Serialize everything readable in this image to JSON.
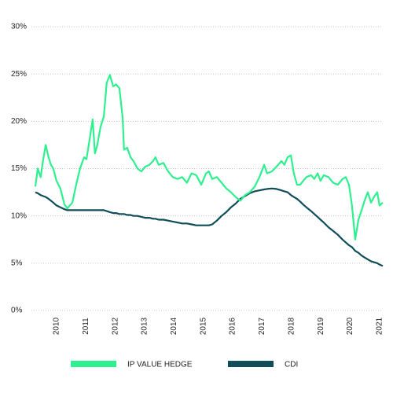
{
  "chart_data": {
    "type": "line",
    "x": [
      2009.28,
      2009.36,
      2009.46,
      2009.54,
      2009.63,
      2009.73,
      2009.81,
      2009.89,
      2010.0,
      2010.13,
      2010.27,
      2010.37,
      2010.54,
      2010.67,
      2010.8,
      2010.94,
      2011.02,
      2011.12,
      2011.23,
      2011.31,
      2011.39,
      2011.5,
      2011.61,
      2011.71,
      2011.82,
      2011.93,
      2012.03,
      2012.14,
      2012.25,
      2012.3,
      2012.41,
      2012.52,
      2012.62,
      2012.76,
      2012.89,
      2013.02,
      2013.16,
      2013.29,
      2013.37,
      2013.48,
      2013.64,
      2013.8,
      2013.96,
      2014.12,
      2014.28,
      2014.44,
      2014.6,
      2014.76,
      2014.93,
      2015.09,
      2015.19,
      2015.3,
      2015.46,
      2015.62,
      2015.78,
      2015.94,
      2016.1,
      2016.26,
      2016.42,
      2016.58,
      2016.75,
      2016.91,
      2017.07,
      2017.17,
      2017.33,
      2017.49,
      2017.66,
      2017.76,
      2017.87,
      2017.98,
      2018.08,
      2018.19,
      2018.3,
      2018.4,
      2018.51,
      2018.67,
      2018.78,
      2018.89,
      2018.99,
      2019.1,
      2019.26,
      2019.42,
      2019.58,
      2019.74,
      2019.85,
      2019.96,
      2020.06,
      2020.17,
      2020.28,
      2020.39,
      2020.49,
      2020.6,
      2020.71,
      2020.81,
      2020.92,
      2021.0,
      2021.11
    ],
    "series": [
      {
        "name": "IP VALUE HEDGE",
        "color": "#2ef08f",
        "values": [
          13.1,
          15.0,
          14.1,
          15.8,
          17.5,
          16.2,
          15.4,
          15.0,
          13.7,
          12.9,
          11.2,
          10.8,
          11.4,
          13.3,
          15.0,
          16.2,
          16.0,
          17.9,
          20.2,
          16.6,
          17.5,
          19.4,
          20.5,
          24.1,
          24.9,
          23.7,
          23.9,
          23.5,
          20.4,
          17.0,
          17.2,
          16.2,
          15.8,
          15.0,
          14.7,
          15.2,
          15.4,
          15.8,
          16.2,
          15.4,
          15.6,
          14.7,
          14.1,
          13.9,
          14.1,
          13.5,
          14.5,
          14.3,
          13.3,
          14.5,
          14.7,
          13.9,
          14.1,
          13.5,
          12.9,
          12.5,
          12.0,
          11.6,
          12.2,
          12.5,
          13.1,
          14.1,
          15.4,
          14.5,
          14.7,
          15.2,
          15.8,
          15.4,
          16.2,
          16.4,
          14.5,
          13.3,
          13.3,
          13.7,
          14.1,
          14.3,
          13.9,
          14.5,
          13.7,
          14.3,
          14.1,
          13.5,
          13.3,
          13.9,
          14.1,
          13.3,
          11.1,
          7.5,
          9.6,
          10.6,
          11.6,
          12.5,
          11.4,
          12.0,
          12.5,
          11.1,
          11.4
        ]
      },
      {
        "name": "CDI",
        "color": "#0f4d58",
        "values": [
          12.5,
          12.4,
          12.2,
          12.1,
          12.0,
          11.8,
          11.6,
          11.4,
          11.1,
          10.9,
          10.7,
          10.6,
          10.6,
          10.6,
          10.6,
          10.6,
          10.6,
          10.6,
          10.6,
          10.6,
          10.6,
          10.6,
          10.6,
          10.5,
          10.4,
          10.3,
          10.3,
          10.2,
          10.2,
          10.2,
          10.1,
          10.1,
          10.0,
          10.0,
          9.9,
          9.8,
          9.8,
          9.7,
          9.7,
          9.6,
          9.6,
          9.5,
          9.4,
          9.3,
          9.2,
          9.2,
          9.1,
          9.0,
          9.0,
          9.0,
          9.0,
          9.1,
          9.5,
          10.0,
          10.4,
          10.9,
          11.3,
          11.8,
          12.1,
          12.4,
          12.6,
          12.7,
          12.8,
          12.85,
          12.9,
          12.85,
          12.7,
          12.6,
          12.5,
          12.2,
          12.0,
          11.8,
          11.5,
          11.2,
          10.9,
          10.5,
          10.2,
          9.9,
          9.6,
          9.3,
          8.8,
          8.4,
          8.0,
          7.5,
          7.2,
          6.9,
          6.7,
          6.3,
          6.1,
          5.8,
          5.6,
          5.4,
          5.2,
          5.1,
          5.0,
          4.85,
          4.7
        ]
      }
    ],
    "xlim": [
      2009.28,
      2021.11
    ],
    "xticks": [
      2010,
      2011,
      2012,
      2013,
      2014,
      2015,
      2016,
      2017,
      2018,
      2019,
      2020,
      2021
    ],
    "ylim": [
      0,
      30
    ],
    "yticks": [
      {
        "value": 0,
        "label": "0%"
      },
      {
        "value": 5,
        "label": "5%"
      },
      {
        "value": 10,
        "label": "10%"
      },
      {
        "value": 15,
        "label": "15%"
      },
      {
        "value": 20,
        "label": "20%"
      },
      {
        "value": 25,
        "label": "25%"
      },
      {
        "value": 30,
        "label": "30%"
      }
    ],
    "grid": true
  }
}
